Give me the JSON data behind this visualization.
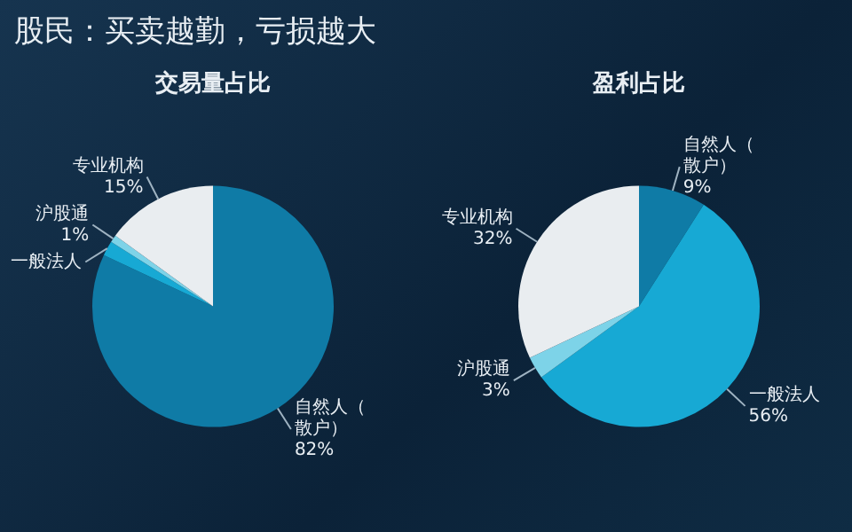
{
  "chart_data": [
    {
      "type": "pie",
      "title": "交易量占比",
      "categories": [
        "自然人（散户）",
        "一般法人",
        "沪股通",
        "专业机构"
      ],
      "values": [
        82,
        2,
        1,
        15
      ],
      "value_labels": [
        "82%",
        null,
        "1%",
        "15%"
      ],
      "colors": [
        "#0f7ba6",
        "#17a9d4",
        "#7dd3e8",
        "#e9edf0"
      ],
      "annotations": [
        "股民：买卖越勤，亏损越大"
      ]
    },
    {
      "type": "pie",
      "title": "盈利占比",
      "categories": [
        "自然人（散户）",
        "一般法人",
        "沪股通",
        "专业机构"
      ],
      "values": [
        9,
        56,
        3,
        32
      ],
      "value_labels": [
        "9%",
        "56%",
        "3%",
        "32%"
      ],
      "colors": [
        "#0f7ba6",
        "#17a9d4",
        "#7dd3e8",
        "#e9edf0"
      ]
    }
  ]
}
